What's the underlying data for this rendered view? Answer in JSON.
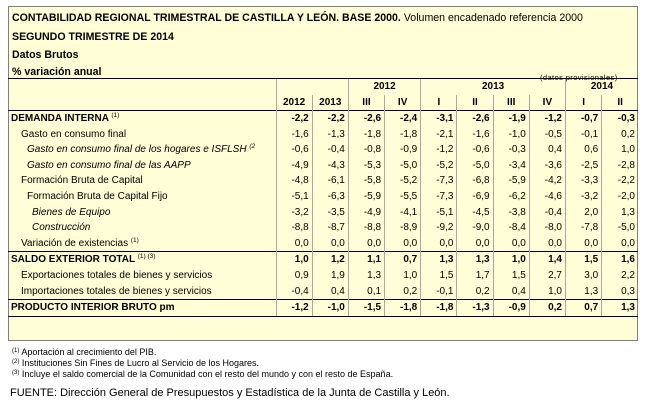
{
  "header": {
    "title_bold": "CONTABILIDAD REGIONAL TRIMESTRAL DE CASTILLA Y LEÓN. BASE 2000.",
    "title_rest": "Volumen encadenado referencia 2000",
    "quarter": "SEGUNDO TRIMESTRE DE 2014",
    "datatype": "Datos Brutos",
    "measure": "% variación anual",
    "provisional": "(datos provisionales)"
  },
  "columns": {
    "years": [
      "2012",
      "2013"
    ],
    "groups": [
      {
        "year": "2012",
        "quarters": [
          "III",
          "IV"
        ]
      },
      {
        "year": "2013",
        "quarters": [
          "I",
          "II",
          "III",
          "IV"
        ]
      },
      {
        "year": "2014",
        "quarters": [
          "I",
          "II"
        ]
      }
    ]
  },
  "rows": [
    {
      "label": "DEMANDA INTERNA",
      "note": "(1)",
      "values": [
        "-2,2",
        "-2,2",
        "-2,6",
        "-2,4",
        "-3,1",
        "-2,6",
        "-1,9",
        "-1,2",
        "-0,7",
        "-0,3"
      ]
    },
    {
      "label": "Gasto en consumo final",
      "note": "",
      "values": [
        "-1,6",
        "-1,3",
        "-1,8",
        "-1,8",
        "-2,1",
        "-1,6",
        "-1,0",
        "-0,5",
        "-0,1",
        "0,2"
      ]
    },
    {
      "label": "Gasto en consumo final de los hogares e ISFLSH",
      "note": "(2",
      "values": [
        "-0,6",
        "-0,4",
        "-0,8",
        "-0,9",
        "-1,2",
        "-0,6",
        "-0,3",
        "0,4",
        "0,6",
        "1,0"
      ]
    },
    {
      "label": "Gasto en consumo final de las AAPP",
      "note": "",
      "values": [
        "-4,9",
        "-4,3",
        "-5,3",
        "-5,0",
        "-5,2",
        "-5,0",
        "-3,4",
        "-3,6",
        "-2,5",
        "-2,8"
      ]
    },
    {
      "label": "Formación Bruta de Capital",
      "note": "",
      "values": [
        "-4,8",
        "-6,1",
        "-5,8",
        "-5,2",
        "-7,3",
        "-6,8",
        "-5,9",
        "-4,2",
        "-3,3",
        "-2,2"
      ]
    },
    {
      "label": "Formación Bruta de Capital Fijo",
      "note": "",
      "values": [
        "-5,1",
        "-6,3",
        "-5,9",
        "-5,5",
        "-7,3",
        "-6,9",
        "-6,2",
        "-4,6",
        "-3,2",
        "-2,0"
      ]
    },
    {
      "label": "Bienes de Equipo",
      "note": "",
      "values": [
        "-3,2",
        "-3,5",
        "-4,9",
        "-4,1",
        "-5,1",
        "-4,5",
        "-3,8",
        "-0,4",
        "2,0",
        "1,3"
      ]
    },
    {
      "label": "Construcción",
      "note": "",
      "values": [
        "-8,8",
        "-8,7",
        "-8,8",
        "-8,9",
        "-9,2",
        "-9,0",
        "-8,4",
        "-8,0",
        "-7,8",
        "-5,0"
      ]
    },
    {
      "label": "Variación de existencias",
      "note": "(1)",
      "values": [
        "0,0",
        "0,0",
        "0,0",
        "0,0",
        "0,0",
        "0,0",
        "0,0",
        "0,0",
        "0,0",
        "0,0"
      ]
    },
    {
      "label": "SALDO EXTERIOR TOTAL",
      "note": "(1) (3)",
      "values": [
        "1,0",
        "1,2",
        "1,1",
        "0,7",
        "1,3",
        "1,3",
        "1,0",
        "1,4",
        "1,5",
        "1,6"
      ]
    },
    {
      "label": "Exportaciones totales de bienes y servicios",
      "note": "",
      "values": [
        "0,9",
        "1,9",
        "1,3",
        "1,0",
        "1,5",
        "1,7",
        "1,5",
        "2,7",
        "3,0",
        "2,2"
      ]
    },
    {
      "label": "Importaciones totales de bienes y servicios",
      "note": "",
      "values": [
        "-0,4",
        "0,4",
        "0,1",
        "0,2",
        "-0,1",
        "0,2",
        "0,4",
        "1,0",
        "1,3",
        "0,3"
      ]
    },
    {
      "label": "PRODUCTO INTERIOR BRUTO pm",
      "note": "",
      "values": [
        "-1,2",
        "-1,0",
        "-1,5",
        "-1,8",
        "-1,8",
        "-1,3",
        "-0,9",
        "0,2",
        "0,7",
        "1,3"
      ]
    }
  ],
  "notes": [
    {
      "mark": "(1)",
      "text": "Aportación al crecimiento del PIB."
    },
    {
      "mark": "(2)",
      "text": "Instituciones Sin Fines de Lucro al Servicio de los Hogares."
    },
    {
      "mark": "(3)",
      "text": "Incluye el saldo comercial de la Comunidad con el resto del mundo y con el resto de España."
    }
  ],
  "source": "FUENTE: Dirección General de Presupuestos y Estadística de la Junta de Castilla y León."
}
